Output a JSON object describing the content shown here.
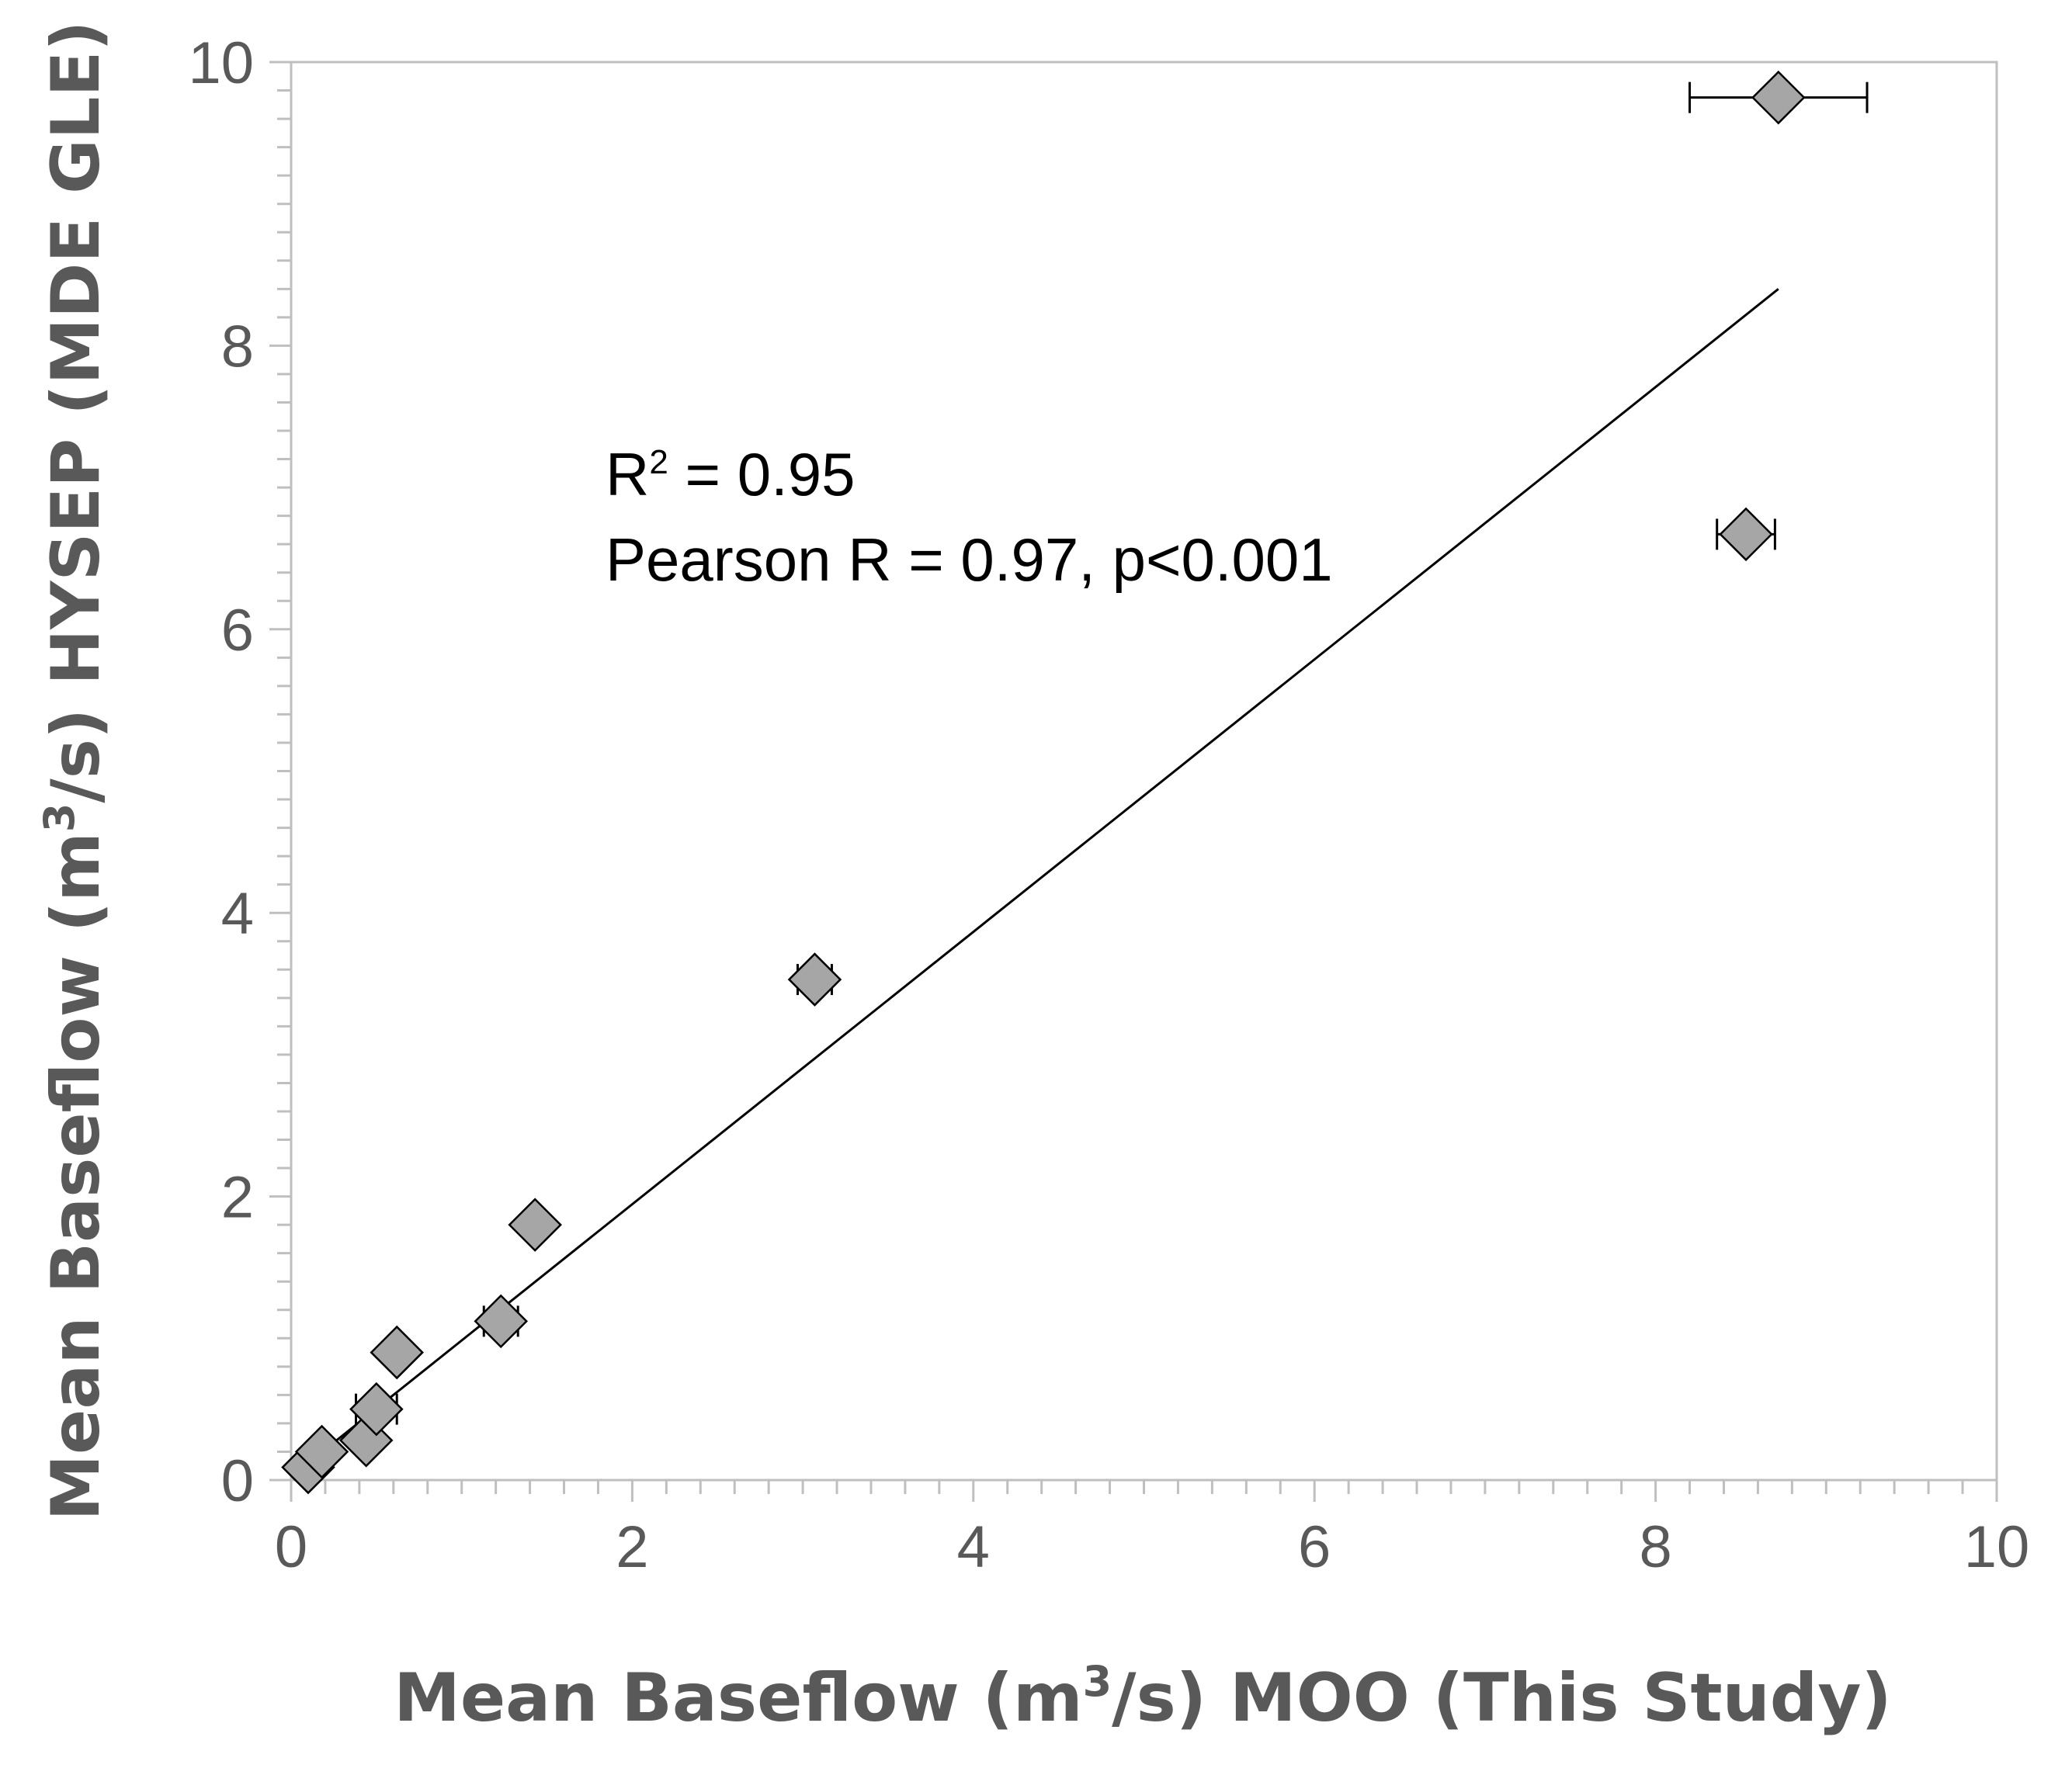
{
  "chart_data": {
    "type": "scatter",
    "title": "",
    "xlabel": {
      "prefix": "Mean Baseflow (m",
      "sup": "3",
      "suffix": "/s) MOO (This Study)"
    },
    "ylabel": {
      "prefix": "Mean Baseflow (m",
      "sup": "3",
      "suffix": "/s) HYSEP (MDE GLE)"
    },
    "xlim": [
      0,
      10
    ],
    "ylim": [
      0,
      10
    ],
    "xticks": [
      "0",
      "2",
      "4",
      "6",
      "8",
      "10"
    ],
    "yticks": [
      "0",
      "2",
      "4",
      "6",
      "8",
      "10"
    ],
    "grid": false,
    "points": [
      {
        "x": 0.1,
        "y": 0.09,
        "xerr": 0.0
      },
      {
        "x": 0.18,
        "y": 0.2,
        "xerr": 0.0
      },
      {
        "x": 0.44,
        "y": 0.28,
        "xerr": 0.0
      },
      {
        "x": 0.5,
        "y": 0.5,
        "xerr": 0.12
      },
      {
        "x": 0.62,
        "y": 0.9,
        "xerr": 0.0
      },
      {
        "x": 1.23,
        "y": 1.12,
        "xerr": 0.1
      },
      {
        "x": 1.43,
        "y": 1.8,
        "xerr": 0.03
      },
      {
        "x": 3.07,
        "y": 3.53,
        "xerr": 0.1
      },
      {
        "x": 8.53,
        "y": 6.67,
        "xerr": 0.17
      },
      {
        "x": 8.72,
        "y": 9.75,
        "xerr": 0.52
      }
    ],
    "trendline": {
      "x": [
        0.1,
        8.72
      ],
      "y": [
        0.12,
        8.4
      ]
    },
    "annotations": {
      "r2_prefix": "R",
      "r2_sup": "2",
      "r2_suffix": " = 0.95",
      "pearson": "Pearson R = 0.97, p<0.001"
    },
    "colors": {
      "marker_fill": "#a6a6a6",
      "marker_stroke": "#000000",
      "axis": "#bfbfbf",
      "text": "#595959"
    }
  }
}
